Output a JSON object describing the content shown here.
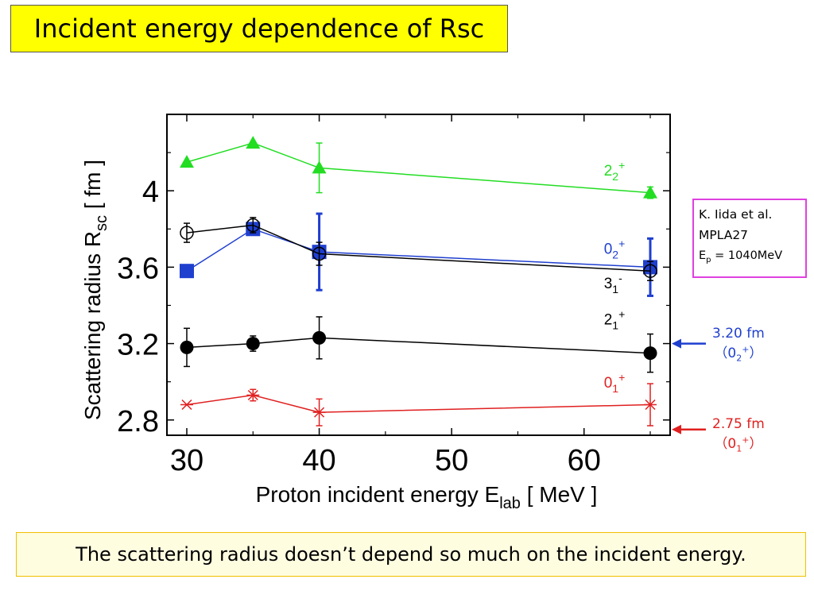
{
  "title": "Incident energy dependence of Rsc",
  "conclusion": "The scattering radius doesn’t depend so much on the incident energy.",
  "reference": {
    "line1": "K. Iida et al.",
    "line2": "MPLA27",
    "line3_base": "E",
    "line3_sub": "p",
    "line3_rest": " = 1040MeV"
  },
  "side_notes": [
    {
      "value": "3.20 fm",
      "state_base": "0",
      "state_sub": "2",
      "state_sup": "+",
      "color": "#1f3fcf",
      "arrow_y_value": 3.2
    },
    {
      "value": "2.75 fm",
      "state_base": "0",
      "state_sub": "1",
      "state_sup": "+",
      "color": "#e02020",
      "arrow_y_value": 2.75
    }
  ],
  "chart_data": {
    "type": "scatter",
    "xlabel": "Proton incident energy E",
    "xlabel_sub": "lab",
    "xlabel_rest": " [ MeV ]",
    "ylabel": "Scattering radius R",
    "ylabel_sub": "sc",
    "ylabel_rest": " [ fm ]",
    "xlim": [
      28.5,
      66.5
    ],
    "ylim": [
      2.72,
      4.4
    ],
    "x_ticks": [
      30,
      40,
      50,
      60
    ],
    "y_ticks": [
      2.8,
      3.2,
      3.6,
      4
    ],
    "x_tick_labels": [
      "30",
      "40",
      "50",
      "60"
    ],
    "y_tick_labels": [
      "2.8",
      "3.2",
      "3.6",
      "4"
    ],
    "grid": false,
    "series": [
      {
        "name": "2",
        "sub": "2",
        "sup": "+",
        "color": "#22dd22",
        "marker": "triangle",
        "x": [
          30,
          35,
          40,
          65
        ],
        "y": [
          4.15,
          4.25,
          4.12,
          3.99
        ],
        "yerr": [
          0,
          0,
          0.13,
          0.03
        ],
        "label_x": 61.5,
        "label_y": 4.08
      },
      {
        "name": "0",
        "sub": "2",
        "sup": "+",
        "color": "#1f3fcf",
        "marker": "square",
        "x": [
          30,
          35,
          40,
          65
        ],
        "y": [
          3.58,
          3.8,
          3.68,
          3.6
        ],
        "yerr": [
          0,
          0.03,
          0.2,
          0.15
        ],
        "label_x": 61.5,
        "label_y": 3.67
      },
      {
        "name": "3",
        "sub": "1",
        "sup": "-",
        "color": "#000000",
        "marker": "circle-open",
        "x": [
          30,
          35,
          40,
          65
        ],
        "y": [
          3.78,
          3.82,
          3.67,
          3.58
        ],
        "yerr": [
          0.05,
          0.04,
          0.06,
          0.05
        ],
        "label_x": 61.5,
        "label_y": 3.49
      },
      {
        "name": "2",
        "sub": "1",
        "sup": "+",
        "color": "#000000",
        "marker": "circle",
        "x": [
          30,
          35,
          40,
          65
        ],
        "y": [
          3.18,
          3.2,
          3.23,
          3.15
        ],
        "yerr": [
          0.1,
          0.04,
          0.11,
          0.1
        ],
        "label_x": 61.5,
        "label_y": 3.3
      },
      {
        "name": "0",
        "sub": "1",
        "sup": "+",
        "color": "#e02020",
        "marker": "asterisk",
        "x": [
          30,
          35,
          40,
          65
        ],
        "y": [
          2.88,
          2.93,
          2.84,
          2.88
        ],
        "yerr": [
          0,
          0.03,
          0.07,
          0.11
        ],
        "label_x": 61.5,
        "label_y": 2.97
      }
    ]
  }
}
